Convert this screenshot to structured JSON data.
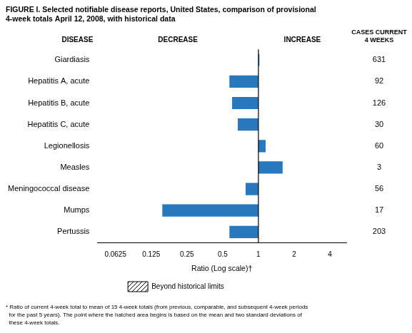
{
  "chart_data": {
    "type": "bar",
    "orientation": "horizontal",
    "log": "x",
    "grid": false,
    "title": "FIGURE I. Selected notifiable disease reports, United States, comparison of provisional\n4-week totals April 12, 2008, with historical data",
    "categories": [
      "Giardiasis",
      "Hepatitis A, acute",
      "Hepatitis B, acute",
      "Hepatitis C, acute",
      "Legionellosis",
      "Measles",
      "Meningococcal disease",
      "Mumps",
      "Pertussis"
    ],
    "values": [
      1.02,
      0.57,
      0.6,
      0.67,
      1.15,
      1.6,
      0.78,
      0.155,
      0.57
    ],
    "reference_line": 1,
    "color": "#2878BE",
    "cases": [
      631,
      92,
      126,
      30,
      60,
      3,
      56,
      17,
      203
    ],
    "cases_label": "CASES CURRENT\n4 WEEKS",
    "xlabel": "Ratio (Log scale)†",
    "xlim": [
      0.044,
      5.5
    ],
    "xticks": [
      0.0625,
      0.125,
      0.25,
      0.5,
      1,
      2,
      4
    ],
    "decrease_label": "DECREASE",
    "increase_label": "INCREASE",
    "disease_label": "DISEASE",
    "legend_label": "Beyond historical limits",
    "footnote": "* Ratio of current 4-week total to mean of 15 4-week totals (from previous, comparable, and subsequent 4-week periods\n  for the past 5 years). The point where the hatched area begins is based on the mean and two standard deviations of\n  these 4-week totals."
  }
}
